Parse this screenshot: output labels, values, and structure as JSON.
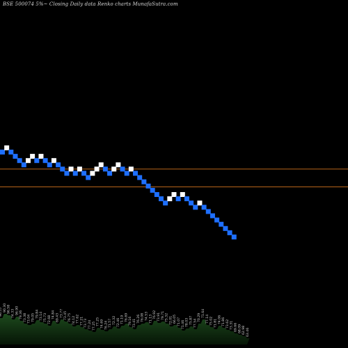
{
  "title": "BSE 500074  5%~  Closing Daily data  Renko  charts MunafaSutra.com",
  "colors": {
    "background": "#000000",
    "up_brick": "#ffffff",
    "down_brick": "#1e6fff",
    "level_line": "#b8651a",
    "volume_fill": "#0b2a0b",
    "volume_top": "#1d4a1d",
    "label": "#d0d0d0"
  },
  "chart_data": {
    "type": "renko",
    "bricks": [
      {
        "dir": "down",
        "level": 0
      },
      {
        "dir": "up",
        "level": 1
      },
      {
        "dir": "down",
        "level": 0
      },
      {
        "dir": "down",
        "level": -1
      },
      {
        "dir": "down",
        "level": -2
      },
      {
        "dir": "down",
        "level": -3
      },
      {
        "dir": "up",
        "level": -2
      },
      {
        "dir": "up",
        "level": -1
      },
      {
        "dir": "down",
        "level": -2
      },
      {
        "dir": "up",
        "level": -1
      },
      {
        "dir": "down",
        "level": -2
      },
      {
        "dir": "down",
        "level": -3
      },
      {
        "dir": "up",
        "level": -2
      },
      {
        "dir": "down",
        "level": -3
      },
      {
        "dir": "down",
        "level": -4
      },
      {
        "dir": "down",
        "level": -5
      },
      {
        "dir": "up",
        "level": -4
      },
      {
        "dir": "down",
        "level": -5
      },
      {
        "dir": "up",
        "level": -4
      },
      {
        "dir": "down",
        "level": -5
      },
      {
        "dir": "down",
        "level": -6
      },
      {
        "dir": "up",
        "level": -5
      },
      {
        "dir": "up",
        "level": -4
      },
      {
        "dir": "up",
        "level": -3
      },
      {
        "dir": "down",
        "level": -4
      },
      {
        "dir": "down",
        "level": -5
      },
      {
        "dir": "up",
        "level": -4
      },
      {
        "dir": "up",
        "level": -3
      },
      {
        "dir": "down",
        "level": -4
      },
      {
        "dir": "down",
        "level": -5
      },
      {
        "dir": "up",
        "level": -4
      },
      {
        "dir": "down",
        "level": -5
      },
      {
        "dir": "down",
        "level": -6
      },
      {
        "dir": "down",
        "level": -7
      },
      {
        "dir": "down",
        "level": -8
      },
      {
        "dir": "down",
        "level": -9
      },
      {
        "dir": "down",
        "level": -10
      },
      {
        "dir": "down",
        "level": -11
      },
      {
        "dir": "down",
        "level": -12
      },
      {
        "dir": "up",
        "level": -11
      },
      {
        "dir": "up",
        "level": -10
      },
      {
        "dir": "down",
        "level": -11
      },
      {
        "dir": "up",
        "level": -10
      },
      {
        "dir": "down",
        "level": -11
      },
      {
        "dir": "down",
        "level": -12
      },
      {
        "dir": "down",
        "level": -13
      },
      {
        "dir": "up",
        "level": -12
      },
      {
        "dir": "down",
        "level": -13
      },
      {
        "dir": "down",
        "level": -14
      },
      {
        "dir": "down",
        "level": -15
      },
      {
        "dir": "down",
        "level": -16
      },
      {
        "dir": "down",
        "level": -17
      },
      {
        "dir": "down",
        "level": -18
      },
      {
        "dir": "down",
        "level": -19
      },
      {
        "dir": "down",
        "level": -20
      }
    ],
    "level_lines": [
      -4,
      -8.2
    ],
    "volume": [
      0.38,
      0.44,
      0.42,
      0.36,
      0.4,
      0.34,
      0.3,
      0.28,
      0.3,
      0.35,
      0.32,
      0.3,
      0.27,
      0.34,
      0.3,
      0.36,
      0.33,
      0.3,
      0.26,
      0.28,
      0.25,
      0.22,
      0.2,
      0.18,
      0.24,
      0.21,
      0.19,
      0.22,
      0.26,
      0.23,
      0.27,
      0.3,
      0.25,
      0.22,
      0.28,
      0.3,
      0.32,
      0.28,
      0.34,
      0.31,
      0.33,
      0.3,
      0.26,
      0.28,
      0.24,
      0.2,
      0.23,
      0.26,
      0.22,
      0.3,
      0.36,
      0.28,
      0.25,
      0.22,
      0.27,
      0.24,
      0.21,
      0.19,
      0.16,
      0.14,
      0.12,
      0.09
    ],
    "volume_labels": [
      "96.55",
      "90.30",
      "96.58",
      "74.33",
      "96.90",
      "79.36",
      "73.38",
      "73.04",
      "79.05",
      "79.84",
      "73.14",
      "75.73",
      "72.68",
      "74.84",
      "69.43",
      "73.77",
      "73.45",
      "76.75",
      "74.12",
      "77.62",
      "77.21",
      "73.73",
      "77.24",
      "77.25",
      "77.25",
      "74.69",
      "76.24",
      "71.57",
      "72.32",
      "72.46",
      "71.19",
      "76.69",
      "79.16",
      "73.41",
      "76.26",
      "76.08",
      "74.53",
      "71.13",
      "76.92",
      "73.91",
      "79.71",
      "75.32",
      "72.01",
      "66.05",
      "71.07",
      "71.46",
      "78.03",
      "75.87",
      "77.54",
      "70.29",
      "71.64",
      "77.14",
      "75.02",
      "71.81",
      "74.06",
      "71.86",
      "73.62",
      "73.31",
      "69.66",
      "68.09",
      "62.98",
      "63.46"
    ]
  }
}
